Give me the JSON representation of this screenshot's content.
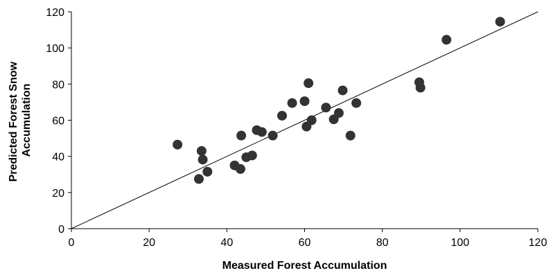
{
  "chart_data": {
    "type": "scatter",
    "title": "",
    "xlabel": "Measured Forest Accumulation",
    "ylabel_lines": [
      "Predicted Forest Snow",
      "Accumulation"
    ],
    "xlim": [
      0,
      120
    ],
    "ylim": [
      0,
      120
    ],
    "xticks": [
      0,
      20,
      40,
      60,
      80,
      100,
      120
    ],
    "yticks": [
      0,
      20,
      40,
      60,
      80,
      100,
      120
    ],
    "grid": false,
    "reference_line": {
      "from": [
        0,
        0
      ],
      "to": [
        120,
        120
      ]
    },
    "marker_color": "#333333",
    "points": [
      {
        "x": 27.3,
        "y": 46.5
      },
      {
        "x": 32.8,
        "y": 27.5
      },
      {
        "x": 33.5,
        "y": 43.0
      },
      {
        "x": 33.8,
        "y": 38.2
      },
      {
        "x": 35.0,
        "y": 31.5
      },
      {
        "x": 42.0,
        "y": 35.0
      },
      {
        "x": 43.5,
        "y": 33.0
      },
      {
        "x": 43.7,
        "y": 51.5
      },
      {
        "x": 45.0,
        "y": 39.5
      },
      {
        "x": 46.5,
        "y": 40.5
      },
      {
        "x": 47.7,
        "y": 54.5
      },
      {
        "x": 49.0,
        "y": 53.5
      },
      {
        "x": 51.8,
        "y": 51.5
      },
      {
        "x": 54.2,
        "y": 62.5
      },
      {
        "x": 56.8,
        "y": 69.5
      },
      {
        "x": 60.0,
        "y": 70.5
      },
      {
        "x": 60.5,
        "y": 56.5
      },
      {
        "x": 61.0,
        "y": 80.5
      },
      {
        "x": 61.8,
        "y": 60.0
      },
      {
        "x": 65.5,
        "y": 67.0
      },
      {
        "x": 67.5,
        "y": 60.5
      },
      {
        "x": 68.8,
        "y": 64.0
      },
      {
        "x": 69.8,
        "y": 76.5
      },
      {
        "x": 71.8,
        "y": 51.5
      },
      {
        "x": 73.3,
        "y": 69.5
      },
      {
        "x": 89.5,
        "y": 81.0
      },
      {
        "x": 89.8,
        "y": 78.0
      },
      {
        "x": 96.5,
        "y": 104.5
      },
      {
        "x": 110.3,
        "y": 114.5
      }
    ]
  }
}
